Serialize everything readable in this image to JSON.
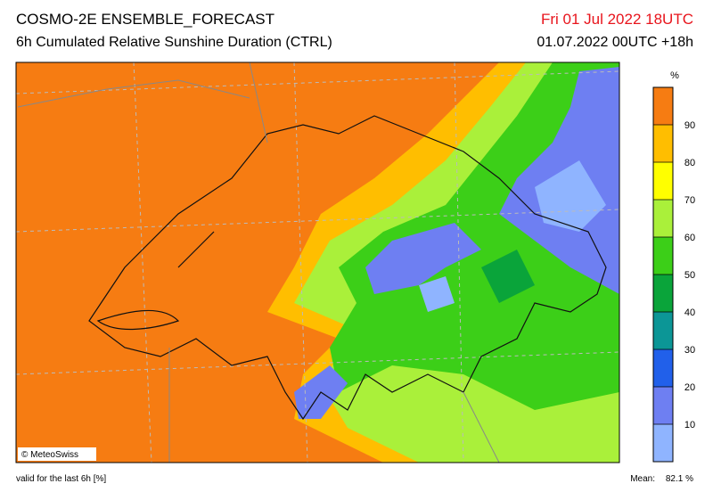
{
  "header": {
    "title": "COSMO-2E ENSEMBLE_FORECAST",
    "subtitle": "6h Cumulated Relative Sunshine Duration (CTRL)",
    "valid_time": "Fri 01 Jul 2022 18UTC",
    "run_time": "01.07.2022 00UTC +18h"
  },
  "map": {
    "credit": "© MeteoSwiss"
  },
  "colorbar": {
    "unit": "%",
    "ticks": [
      10,
      20,
      30,
      40,
      50,
      60,
      70,
      80,
      90
    ],
    "colors": [
      "#8fb4ff",
      "#6e7ff2",
      "#2160ea",
      "#0c9696",
      "#0aa43a",
      "#3ccf18",
      "#aaf03a",
      "#ffff00",
      "#ffbe00",
      "#f67c12"
    ]
  },
  "footer": {
    "note": "valid for the last 6h [%]",
    "mean_label": "Mean:",
    "mean_value": "82.1 %"
  }
}
